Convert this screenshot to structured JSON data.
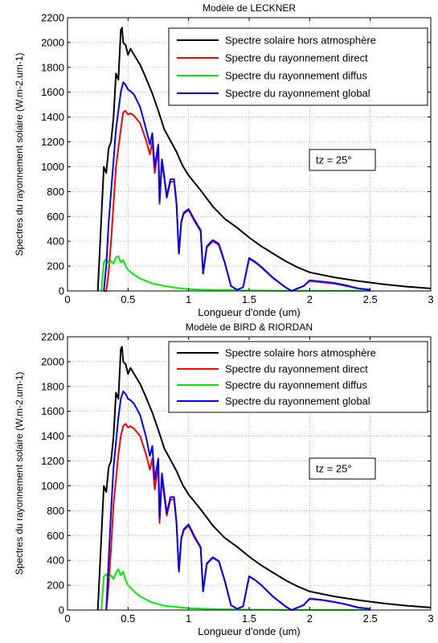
{
  "chart_data": [
    {
      "type": "line",
      "title": "Modèle de LECKNER",
      "xlabel": "Longueur d'onde (um)",
      "ylabel": "Spectres du rayonnement solaire (W.m-2.um-1)",
      "xlim": [
        0,
        3
      ],
      "ylim": [
        0,
        2200
      ],
      "xticks": [
        "0",
        "0.5",
        "1",
        "1.5",
        "2",
        "2.5",
        "3"
      ],
      "yticks": [
        "0",
        "200",
        "400",
        "600",
        "800",
        "1000",
        "1200",
        "1400",
        "1600",
        "1800",
        "2000",
        "2200"
      ],
      "grid": true,
      "legend_position": "top-right",
      "annotation": "tz = 25°",
      "series": [
        {
          "name": "Spectre solaire hors atmosphère",
          "color": "#000000",
          "x": [
            0.25,
            0.28,
            0.3,
            0.32,
            0.34,
            0.36,
            0.38,
            0.4,
            0.42,
            0.44,
            0.45,
            0.46,
            0.48,
            0.5,
            0.52,
            0.55,
            0.6,
            0.65,
            0.7,
            0.75,
            0.8,
            0.85,
            0.9,
            0.95,
            1.0,
            1.1,
            1.2,
            1.3,
            1.4,
            1.5,
            1.6,
            1.7,
            1.8,
            1.9,
            2.0,
            2.2,
            2.4,
            2.6,
            2.8,
            3.0
          ],
          "y": [
            0,
            600,
            1000,
            950,
            1150,
            1200,
            1400,
            1750,
            1700,
            2100,
            2120,
            2000,
            1980,
            1900,
            1950,
            1900,
            1820,
            1710,
            1590,
            1450,
            1300,
            1210,
            1120,
            1010,
            930,
            810,
            680,
            580,
            510,
            430,
            360,
            300,
            240,
            190,
            150,
            110,
            80,
            55,
            35,
            20
          ]
        },
        {
          "name": "Spectre du rayonnement direct",
          "color": "#ff0000",
          "x": [
            0.3,
            0.32,
            0.34,
            0.36,
            0.38,
            0.4,
            0.42,
            0.44,
            0.46,
            0.48,
            0.5,
            0.52,
            0.55,
            0.6,
            0.65,
            0.68,
            0.7,
            0.72,
            0.75,
            0.76,
            0.78,
            0.8,
            0.82,
            0.85,
            0.88,
            0.9,
            0.92,
            0.94,
            0.96,
            1.0,
            1.05,
            1.1,
            1.12,
            1.15,
            1.2,
            1.25,
            1.3,
            1.35,
            1.4,
            1.45,
            1.5,
            1.55,
            1.6,
            1.7,
            1.8,
            1.85,
            1.9,
            1.95,
            2.0,
            2.1,
            2.2,
            2.3,
            2.4,
            2.5
          ],
          "y": [
            0,
            0,
            150,
            400,
            700,
            1000,
            1150,
            1300,
            1440,
            1450,
            1420,
            1430,
            1410,
            1350,
            1210,
            1100,
            1200,
            950,
            1150,
            700,
            1040,
            900,
            750,
            880,
            880,
            700,
            300,
            550,
            620,
            650,
            560,
            480,
            140,
            350,
            400,
            370,
            220,
            40,
            10,
            30,
            260,
            230,
            190,
            100,
            30,
            0,
            20,
            40,
            80,
            70,
            60,
            40,
            20,
            10
          ]
        },
        {
          "name": "Spectre du rayonnement diffus",
          "color": "#00ee00",
          "x": [
            0.28,
            0.3,
            0.32,
            0.34,
            0.36,
            0.38,
            0.4,
            0.42,
            0.44,
            0.46,
            0.48,
            0.5,
            0.55,
            0.6,
            0.65,
            0.7,
            0.8,
            0.9,
            1.0,
            1.2,
            1.4,
            1.6,
            1.8,
            2.0,
            2.5
          ],
          "y": [
            0,
            230,
            260,
            220,
            240,
            220,
            270,
            280,
            230,
            250,
            200,
            170,
            130,
            100,
            80,
            60,
            40,
            25,
            15,
            8,
            5,
            3,
            2,
            2,
            1
          ]
        },
        {
          "name": "Spectre du rayonnement global",
          "color": "#0000ff",
          "x": [
            0.3,
            0.32,
            0.34,
            0.36,
            0.38,
            0.4,
            0.42,
            0.44,
            0.46,
            0.48,
            0.5,
            0.52,
            0.55,
            0.6,
            0.65,
            0.68,
            0.7,
            0.72,
            0.75,
            0.76,
            0.78,
            0.8,
            0.82,
            0.85,
            0.88,
            0.9,
            0.92,
            0.94,
            0.96,
            1.0,
            1.05,
            1.1,
            1.12,
            1.15,
            1.2,
            1.25,
            1.3,
            1.35,
            1.4,
            1.45,
            1.5,
            1.55,
            1.6,
            1.7,
            1.8,
            1.85,
            1.9,
            1.95,
            2.0,
            2.1,
            2.2,
            2.3,
            2.4,
            2.5
          ],
          "y": [
            0,
            200,
            550,
            800,
            1050,
            1300,
            1450,
            1600,
            1680,
            1660,
            1620,
            1610,
            1580,
            1480,
            1300,
            1180,
            1270,
            1000,
            1180,
            720,
            1060,
            920,
            760,
            900,
            900,
            710,
            300,
            560,
            630,
            660,
            570,
            490,
            140,
            360,
            410,
            380,
            225,
            40,
            10,
            30,
            265,
            235,
            195,
            105,
            30,
            0,
            20,
            40,
            85,
            75,
            65,
            45,
            20,
            10
          ]
        }
      ]
    },
    {
      "type": "line",
      "title": "Modèle de BIRD & RIORDAN",
      "xlabel": "Longueur d'onde (um)",
      "ylabel": "Spectres du rayonnement solaire (W.m-2.um-1)",
      "xlim": [
        0,
        3
      ],
      "ylim": [
        0,
        2200
      ],
      "xticks": [
        "0",
        "0.5",
        "1",
        "1.5",
        "2",
        "2.5",
        "3"
      ],
      "yticks": [
        "0",
        "200",
        "400",
        "600",
        "800",
        "1000",
        "1200",
        "1400",
        "1600",
        "1800",
        "2000",
        "2200"
      ],
      "grid": true,
      "legend_position": "top-right",
      "annotation": "tz = 25°",
      "series": [
        {
          "name": "Spectre solaire hors atmosphère",
          "color": "#000000",
          "x": [
            0.25,
            0.28,
            0.3,
            0.32,
            0.34,
            0.36,
            0.38,
            0.4,
            0.42,
            0.44,
            0.45,
            0.46,
            0.48,
            0.5,
            0.52,
            0.55,
            0.6,
            0.65,
            0.7,
            0.75,
            0.8,
            0.85,
            0.9,
            0.95,
            1.0,
            1.1,
            1.2,
            1.3,
            1.4,
            1.5,
            1.6,
            1.7,
            1.8,
            1.9,
            2.0,
            2.2,
            2.4,
            2.6,
            2.8,
            3.0
          ],
          "y": [
            0,
            600,
            1000,
            950,
            1150,
            1200,
            1400,
            1750,
            1700,
            2100,
            2120,
            2000,
            1980,
            1900,
            1950,
            1900,
            1820,
            1710,
            1590,
            1450,
            1300,
            1210,
            1120,
            1010,
            930,
            810,
            680,
            580,
            510,
            430,
            360,
            300,
            240,
            190,
            150,
            110,
            80,
            55,
            35,
            20
          ]
        },
        {
          "name": "Spectre du rayonnement direct",
          "color": "#ff0000",
          "x": [
            0.32,
            0.34,
            0.36,
            0.38,
            0.4,
            0.42,
            0.44,
            0.46,
            0.48,
            0.5,
            0.52,
            0.55,
            0.6,
            0.65,
            0.68,
            0.7,
            0.72,
            0.75,
            0.76,
            0.78,
            0.8,
            0.82,
            0.85,
            0.88,
            0.9,
            0.92,
            0.94,
            0.96,
            1.0,
            1.05,
            1.1,
            1.12,
            1.15,
            1.2,
            1.25,
            1.3,
            1.35,
            1.4,
            1.45,
            1.5,
            1.55,
            1.6,
            1.7,
            1.8,
            1.85,
            1.9,
            1.95,
            2.0,
            2.1,
            2.2,
            2.3,
            2.4,
            2.5
          ],
          "y": [
            0,
            200,
            500,
            850,
            1050,
            1250,
            1400,
            1480,
            1500,
            1470,
            1480,
            1460,
            1400,
            1250,
            1130,
            1220,
            970,
            1160,
            700,
            1060,
            910,
            760,
            890,
            890,
            700,
            310,
            570,
            640,
            680,
            580,
            500,
            150,
            370,
            420,
            390,
            230,
            40,
            10,
            30,
            270,
            240,
            200,
            105,
            30,
            0,
            20,
            40,
            90,
            80,
            65,
            45,
            20,
            10
          ]
        },
        {
          "name": "Spectre du rayonnement diffus",
          "color": "#00ee00",
          "x": [
            0.28,
            0.3,
            0.32,
            0.34,
            0.36,
            0.38,
            0.4,
            0.42,
            0.44,
            0.46,
            0.48,
            0.5,
            0.55,
            0.6,
            0.65,
            0.7,
            0.8,
            0.9,
            1.0,
            1.2,
            1.4,
            1.6,
            1.8,
            2.0,
            2.5
          ],
          "y": [
            0,
            270,
            290,
            260,
            280,
            250,
            300,
            330,
            280,
            310,
            240,
            200,
            150,
            110,
            85,
            60,
            35,
            25,
            15,
            8,
            5,
            3,
            2,
            2,
            1
          ]
        },
        {
          "name": "Spectre du rayonnement global",
          "color": "#0000ff",
          "x": [
            0.32,
            0.34,
            0.36,
            0.38,
            0.4,
            0.42,
            0.44,
            0.46,
            0.48,
            0.5,
            0.52,
            0.55,
            0.6,
            0.65,
            0.68,
            0.7,
            0.72,
            0.75,
            0.76,
            0.78,
            0.8,
            0.82,
            0.85,
            0.88,
            0.9,
            0.92,
            0.94,
            0.96,
            1.0,
            1.05,
            1.1,
            1.12,
            1.15,
            1.2,
            1.25,
            1.3,
            1.35,
            1.4,
            1.45,
            1.5,
            1.55,
            1.6,
            1.7,
            1.8,
            1.85,
            1.9,
            1.95,
            2.0,
            2.1,
            2.2,
            2.3,
            2.4,
            2.5
          ],
          "y": [
            0,
            400,
            800,
            1150,
            1350,
            1550,
            1700,
            1760,
            1740,
            1700,
            1690,
            1660,
            1570,
            1390,
            1240,
            1320,
            1050,
            1220,
            740,
            1100,
            940,
            780,
            910,
            910,
            710,
            310,
            580,
            650,
            690,
            590,
            505,
            150,
            375,
            425,
            395,
            232,
            40,
            10,
            30,
            272,
            242,
            202,
            106,
            30,
            0,
            20,
            40,
            92,
            82,
            66,
            46,
            20,
            10
          ]
        }
      ]
    }
  ]
}
